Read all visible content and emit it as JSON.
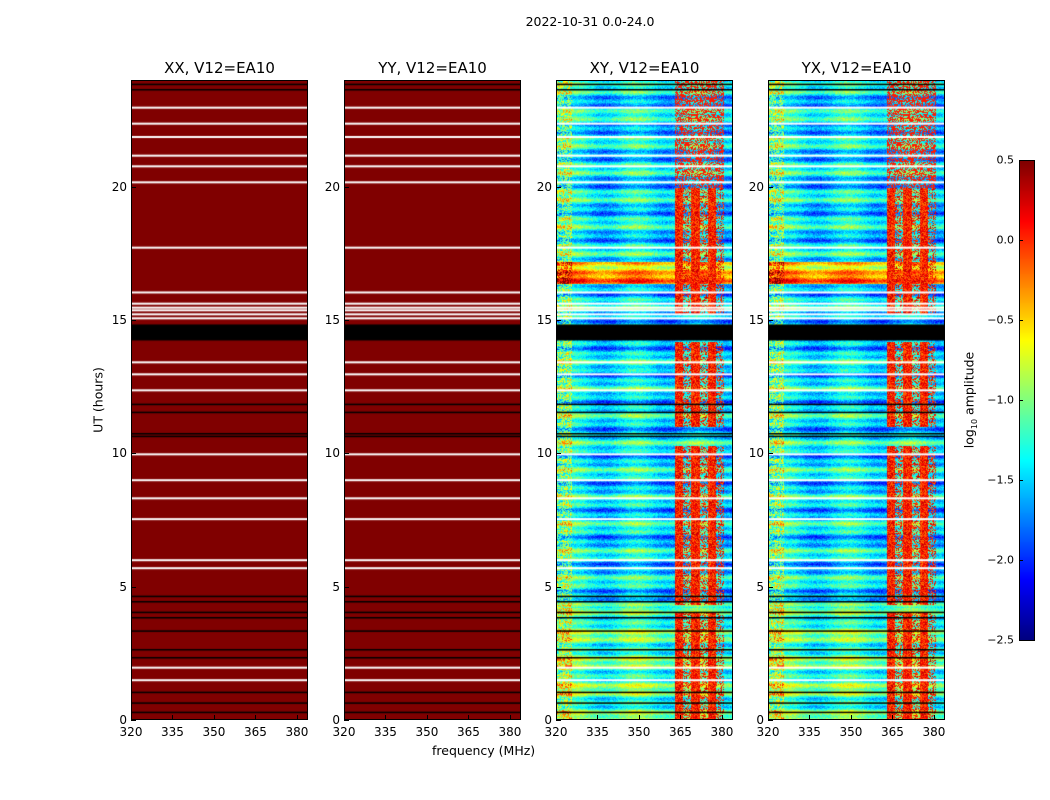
{
  "figure_title": "2022-10-31 0.0-24.0",
  "chart_data": {
    "type": "heatmap",
    "title": "2022-10-31 0.0-24.0",
    "xlabel": "frequency (MHz)",
    "ylabel": "UT (hours)",
    "xlim": [
      320,
      384
    ],
    "ylim": [
      0,
      24
    ],
    "xticks": [
      "320",
      "335",
      "350",
      "365",
      "380"
    ],
    "xtick_values": [
      320,
      335,
      350,
      365,
      380
    ],
    "yticks": [
      "0",
      "5",
      "10",
      "15",
      "20"
    ],
    "ytick_values": [
      0,
      5,
      10,
      15,
      20
    ],
    "panels": [
      {
        "title": "XX, V12=EA10",
        "saturated": true
      },
      {
        "title": "YY, V12=EA10",
        "saturated": true
      },
      {
        "title": "XY, V12=EA10",
        "saturated": false
      },
      {
        "title": "YX, V12=EA10",
        "saturated": false
      }
    ],
    "flagged_ut_white": [
      23.0,
      22.4,
      21.9,
      21.2,
      20.8,
      20.2,
      17.75,
      16.07,
      15.65,
      15.5,
      15.4,
      15.25,
      15.1,
      13.45,
      13.0,
      12.4,
      10.0,
      9.03,
      8.35,
      7.57,
      6.03,
      5.73,
      2.0,
      1.53
    ],
    "flagged_ut_black": [
      23.9,
      23.7,
      11.9,
      11.6,
      10.8,
      10.7,
      4.7,
      4.5,
      4.1,
      3.9,
      3.4,
      2.7,
      2.4,
      1.1,
      0.7,
      0.35
    ],
    "black_band_ut": [
      14.27,
      14.87
    ],
    "hot_freq_range_mhz": [
      363,
      381
    ],
    "colorbar": {
      "label_prefix": "log",
      "label_sub": "10",
      "label_suffix": " amplitude",
      "colormap": "jet",
      "range": [
        -2.5,
        0.5
      ],
      "ticks": [
        "0.5",
        "0.0",
        "−0.5",
        "−1.0",
        "−1.5",
        "−2.0",
        "−2.5"
      ],
      "tick_values": [
        0.5,
        0.0,
        -0.5,
        -1.0,
        -1.5,
        -2.0,
        -2.5
      ]
    }
  }
}
